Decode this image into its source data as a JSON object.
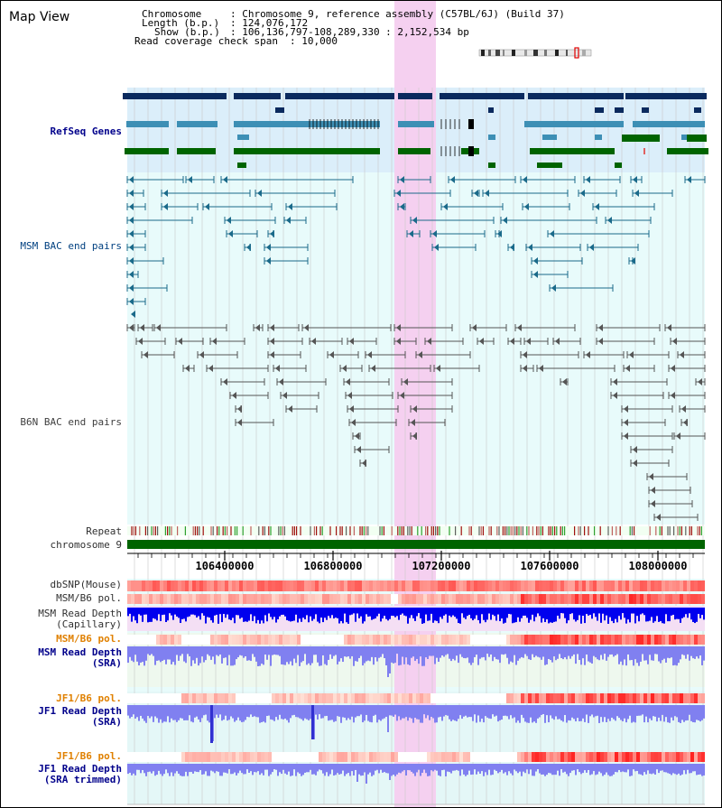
{
  "title": "Map View",
  "info": {
    "chromosome_label": "Chromosome",
    "chromosome_value": ": Chromosome 9, reference assembly (C57BL/6J) (Build 37)",
    "length_label": "Length (b.p.)",
    "length_value": ": 124,076,172",
    "show_label": "Show (b.p.)",
    "show_value": ": 106,136,797-108,289,330 : 2,152,534 bp",
    "coverage_label": "Read coverage check span",
    "coverage_value": ": 10,000"
  },
  "tracks": {
    "refseq": "RefSeq Genes",
    "msm_bac": "MSM BAC end pairs",
    "b6n_bac": "B6N BAC end pairs",
    "repeat": "Repeat",
    "chromosome": "chromosome 9",
    "dbsnp": "dbSNP(Mouse)",
    "msm_b6_pol": "MSM/B6 pol.",
    "msm_read_depth_cap": "MSM Read Depth\n(Capillary)",
    "msm_b6_pol2": "MSM/B6 pol.",
    "msm_read_depth_sra": "MSM Read Depth\n(SRA)",
    "jf1_b6_pol": "JF1/B6 pol.",
    "jf1_read_depth_sra": "JF1 Read Depth\n(SRA)",
    "jf1_b6_pol2": "JF1/B6 pol.",
    "jf1_read_depth_trim": "JF1 Read Depth\n(SRA trimmed)"
  },
  "ruler": {
    "ticks": [
      "106400000",
      "106800000",
      "107200000",
      "107600000",
      "108000000"
    ]
  },
  "colors": {
    "navy_gene": "#0a2a5e",
    "teal_gene": "#3d8fb5",
    "green_gene": "#006400",
    "highlight": "#f5d0f0",
    "msm_line": "#1a6a8a",
    "b6n_line": "#555555",
    "depth_cap": "#0000ee",
    "depth_sra": "#8080f0",
    "chrom_bar": "#006400"
  }
}
